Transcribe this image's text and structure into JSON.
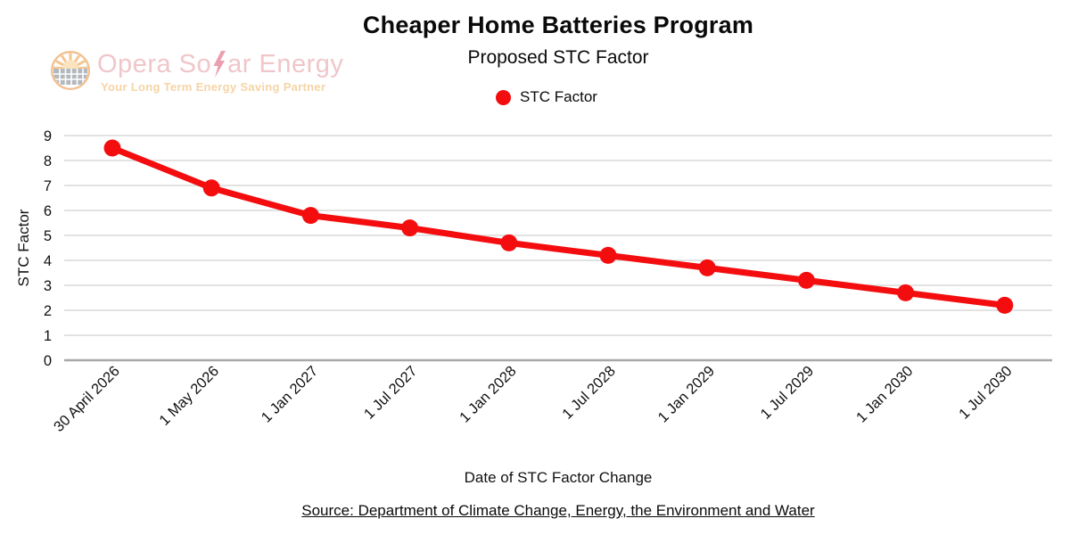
{
  "chart_data": {
    "type": "line",
    "title": "Cheaper Home Batteries Program",
    "subtitle": "Proposed STC Factor",
    "categories": [
      "30 April 2026",
      "1 May 2026",
      "1 Jan 2027",
      "1 Jul 2027",
      "1 Jan 2028",
      "1 Jul 2028",
      "1 Jan 2029",
      "1 Jul 2029",
      "1 Jan 2030",
      "1 Jul 2030"
    ],
    "series": [
      {
        "name": "STC Factor",
        "color": "#f40d0f",
        "marker": "circle",
        "values": [
          8.5,
          6.9,
          5.8,
          5.3,
          4.7,
          4.2,
          3.7,
          3.2,
          2.7,
          2.2
        ]
      }
    ],
    "xlabel": "Date of STC Factor Change",
    "ylabel": "STC Factor",
    "ylim": [
      0,
      9
    ],
    "yticks": [
      0,
      1,
      2,
      3,
      4,
      5,
      6,
      7,
      8,
      9
    ],
    "grid": "horizontal",
    "legend_position": "top-center"
  },
  "legend": {
    "items": [
      {
        "label": "STC Factor",
        "marker": "circle",
        "color": "#f40d0f"
      }
    ]
  },
  "logo": {
    "brand_left": "Opera So",
    "brand_right": "ar Energy",
    "tagline": "Your Long Term Energy Saving Partner",
    "colors": {
      "brand_text": "#f0c6ca",
      "bolt": "#eb9fae",
      "tagline_text": "#f5d4a6",
      "ring": "#f2c091",
      "sun_rays": "#f4c793",
      "sun_core": "#fbe3c0",
      "panel": "#b2b8be"
    }
  },
  "footer": {
    "source": "Source: Department of Climate Change, Energy, the Environment and Water"
  },
  "colors": {
    "series_red": "#f40d0f",
    "gridline": "#d9d9d9",
    "axis_zero_line": "#a8a8a8",
    "text": "#0a0a0a"
  }
}
